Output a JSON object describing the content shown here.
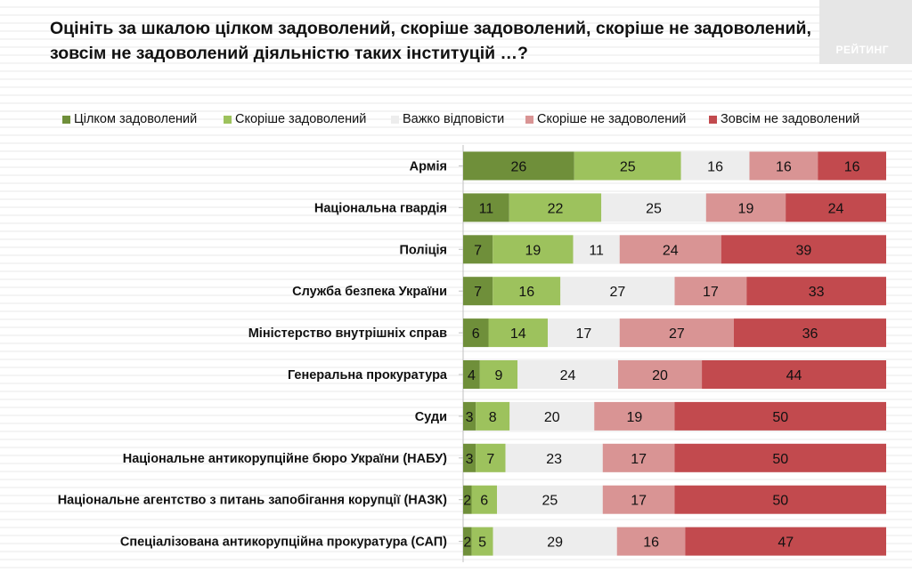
{
  "header": {
    "title_line1": "Оцініть за шкалою цілком задоволений, скоріше задоволений, скоріше не задоволений,",
    "title_line2": "зовсім не задоволений діяльністю таких інституцій …?",
    "logo_text": "РЕЙТИНГ"
  },
  "chart_data": {
    "type": "bar",
    "orientation": "horizontal",
    "stacked": true,
    "categories": [
      "Армія",
      "Національна гвардія",
      "Поліція",
      "Служба безпека України",
      "Міністерство внутрішніх справ",
      "Генеральна прокуратура",
      "Суди",
      "Національне антикорупційне бюро України (НАБУ)",
      "Національне агентство з питань запобігання корупції (НАЗК)",
      "Спеціалізована антикорупційна прокуратура (САП)"
    ],
    "series": [
      {
        "name": "Цілком задоволений",
        "color": "#6f8f3a",
        "values": [
          26,
          11,
          7,
          7,
          6,
          4,
          3,
          3,
          2,
          2
        ]
      },
      {
        "name": "Скоріше задоволений",
        "color": "#9dc25d",
        "values": [
          25,
          22,
          19,
          16,
          14,
          9,
          8,
          7,
          6,
          5
        ]
      },
      {
        "name": "Важко відповісти",
        "color": "#ededed",
        "values": [
          16,
          25,
          11,
          27,
          17,
          24,
          20,
          23,
          25,
          29
        ]
      },
      {
        "name": "Скоріше не задоволений",
        "color": "#d99494",
        "values": [
          16,
          19,
          24,
          17,
          27,
          20,
          19,
          17,
          17,
          16
        ]
      },
      {
        "name": "Зовсім не задоволений",
        "color": "#c24a4e",
        "values": [
          16,
          24,
          39,
          33,
          36,
          44,
          50,
          50,
          50,
          47
        ]
      }
    ],
    "legend_position": "top",
    "data_labels": true
  }
}
